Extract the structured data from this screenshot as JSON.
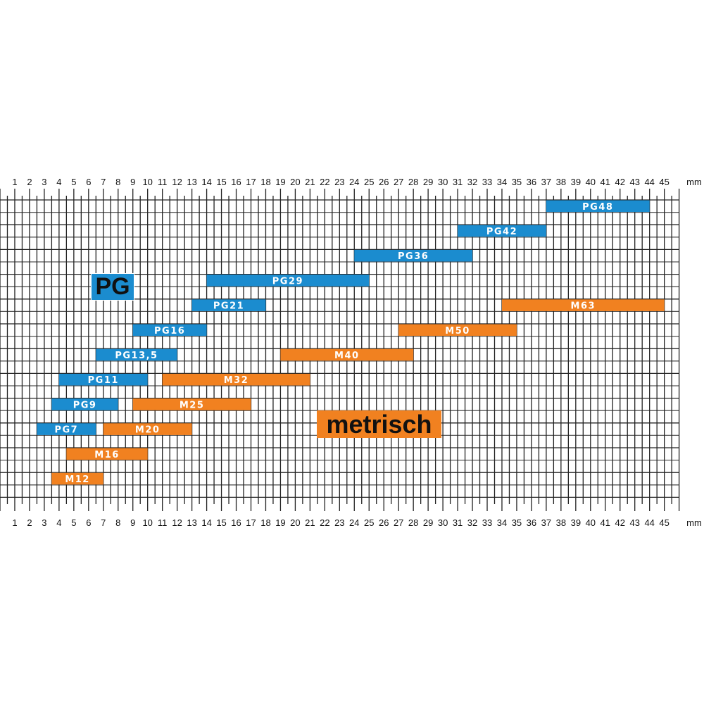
{
  "chart_data": {
    "type": "range-bar",
    "unit_label": "mm",
    "xlim": [
      0,
      46
    ],
    "x_ticks": [
      1,
      2,
      3,
      4,
      5,
      6,
      7,
      8,
      9,
      10,
      11,
      12,
      13,
      14,
      15,
      16,
      17,
      18,
      19,
      20,
      21,
      22,
      23,
      24,
      25,
      26,
      27,
      28,
      29,
      30,
      31,
      32,
      33,
      34,
      35,
      36,
      37,
      38,
      39,
      40,
      41,
      42,
      43,
      44,
      45
    ],
    "grid": true,
    "series": [
      {
        "name": "PG",
        "color": "#1b8ccf",
        "bars": [
          {
            "label": "PG48",
            "start": 37,
            "end": 44,
            "row": 0
          },
          {
            "label": "PG42",
            "start": 31,
            "end": 37,
            "row": 1
          },
          {
            "label": "PG36",
            "start": 24,
            "end": 32,
            "row": 2
          },
          {
            "label": "PG29",
            "start": 14,
            "end": 25,
            "row": 3
          },
          {
            "label": "PG21",
            "start": 13,
            "end": 18,
            "row": 4
          },
          {
            "label": "PG16",
            "start": 9,
            "end": 14,
            "row": 5
          },
          {
            "label": "PG13,5",
            "start": 6.5,
            "end": 12,
            "row": 6
          },
          {
            "label": "PG11",
            "start": 4,
            "end": 10,
            "row": 7
          },
          {
            "label": "PG9",
            "start": 3.5,
            "end": 8,
            "row": 8
          },
          {
            "label": "PG7",
            "start": 2.5,
            "end": 6.5,
            "row": 9
          }
        ]
      },
      {
        "name": "metrisch",
        "color": "#f18120",
        "bars": [
          {
            "label": "M63",
            "start": 34,
            "end": 45,
            "row": 4
          },
          {
            "label": "M50",
            "start": 27,
            "end": 35,
            "row": 5
          },
          {
            "label": "M40",
            "start": 19,
            "end": 28,
            "row": 6
          },
          {
            "label": "M32",
            "start": 11,
            "end": 21,
            "row": 7
          },
          {
            "label": "M25",
            "start": 9,
            "end": 17,
            "row": 8
          },
          {
            "label": "M20",
            "start": 7,
            "end": 13,
            "row": 9
          },
          {
            "label": "M16",
            "start": 4.5,
            "end": 10,
            "row": 10
          },
          {
            "label": "M12",
            "start": 3.5,
            "end": 7,
            "row": 11
          }
        ]
      }
    ],
    "legend": [
      {
        "label": "PG",
        "color": "#1b8ccf"
      },
      {
        "label": "metrisch",
        "color": "#f18120"
      }
    ]
  }
}
